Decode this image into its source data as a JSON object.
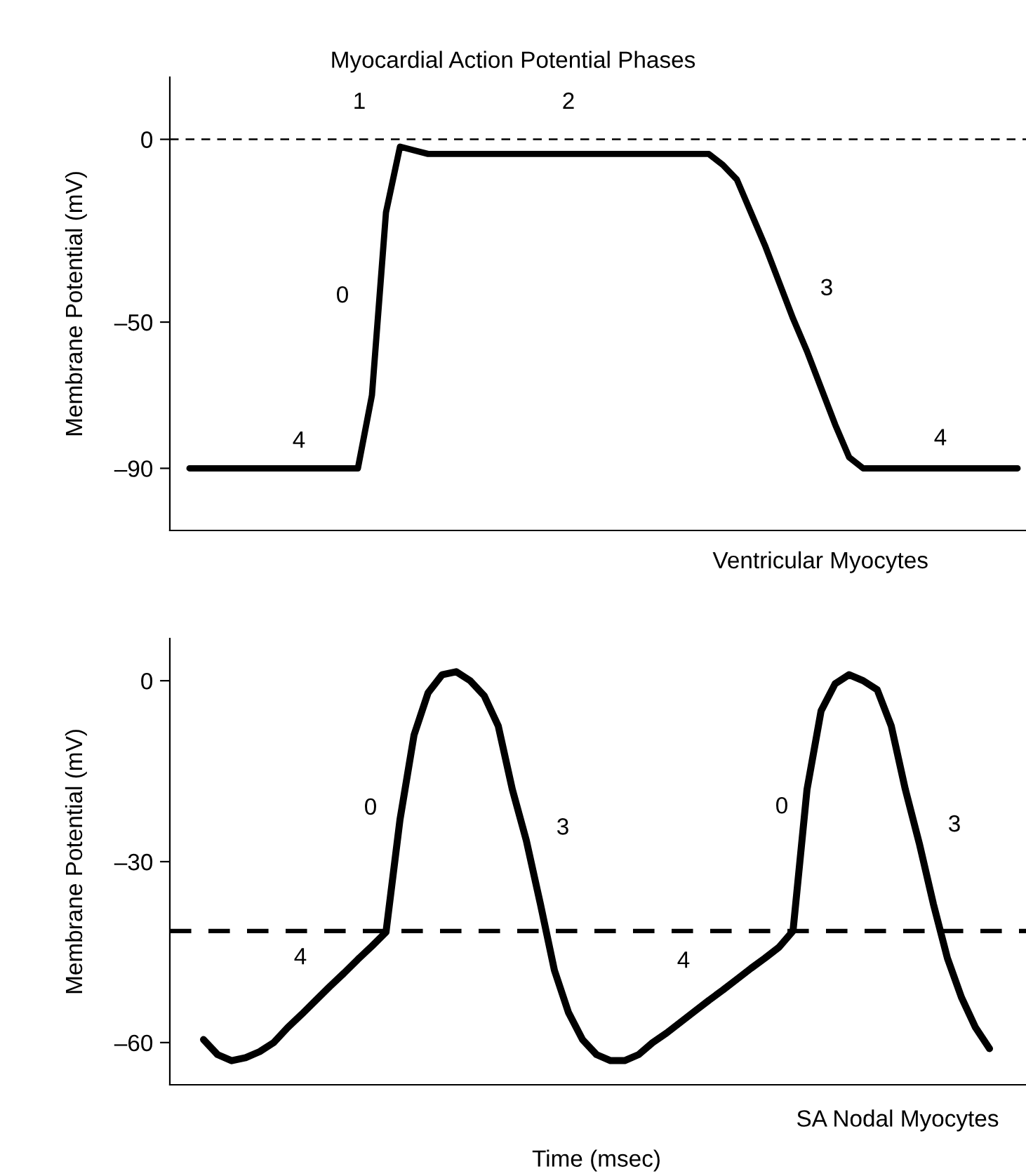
{
  "chart_data": [
    {
      "type": "line",
      "title": "Myocardial Action Potential Phases",
      "ylabel": "Membrane Potential (mV)",
      "categories": [
        null,
        null,
        null,
        null,
        null,
        null,
        null,
        null,
        null,
        null,
        null,
        null,
        null,
        null,
        null,
        null,
        null,
        null,
        null,
        null,
        null,
        null,
        null,
        null,
        null,
        null,
        null,
        null,
        null,
        null,
        null,
        null,
        null,
        null,
        null,
        null,
        null,
        null,
        null,
        null,
        null,
        null,
        null,
        null,
        null,
        null,
        null,
        null,
        null,
        null,
        null,
        null,
        null,
        null,
        null,
        null,
        null,
        null,
        null,
        null
      ],
      "series": [
        {
          "color": "#000000",
          "values": [
            -90,
            -90,
            -90,
            -90,
            -90,
            -90,
            -90,
            -90,
            -90,
            -90,
            -90,
            -90,
            -90,
            -70,
            -20,
            -2,
            -3,
            -4,
            -4,
            -4,
            -4,
            -4,
            -4,
            -4,
            -4,
            -4,
            -4,
            -4,
            -4,
            -4,
            -4,
            -4,
            -4,
            -4,
            -4,
            -4,
            -4,
            -4,
            -7,
            -11,
            -20,
            -29,
            -39,
            -49,
            -58,
            -68,
            -78,
            -87,
            -90,
            -90,
            -90,
            -90,
            -90,
            -90,
            -90,
            -90,
            -90,
            -90,
            -90,
            -90
          ]
        }
      ],
      "ylim": [
        -107,
        17
      ],
      "yticks": [
        0,
        {
          "value": -50,
          "label": "–50"
        },
        {
          "value": -90,
          "label": "–90"
        }
      ],
      "ref_lines": [
        {
          "axis": "y",
          "value": 0,
          "color": "#000000",
          "line_style": "dashed"
        }
      ],
      "annotations": [
        "4",
        "0",
        "1",
        "2",
        "3",
        "4",
        "Ventricular Myocytes"
      ],
      "tick_labels": "y",
      "grid": false,
      "legend": false,
      "marker": "none",
      "line_style": "solid"
    },
    {
      "type": "line",
      "xlabel": "Time (msec)",
      "ylabel": "Membrane Potential (mV)",
      "categories": [
        null,
        null,
        null,
        null,
        null,
        null,
        null,
        null,
        null,
        null,
        null,
        null,
        null,
        null,
        null,
        null,
        null,
        null,
        null,
        null,
        null,
        null,
        null,
        null,
        null,
        null,
        null,
        null,
        null,
        null,
        null,
        null,
        null,
        null,
        null,
        null,
        null,
        null,
        null,
        null,
        null,
        null,
        null,
        null,
        null,
        null,
        null,
        null,
        null,
        null,
        null,
        null,
        null,
        null,
        null,
        null,
        null
      ],
      "series": [
        {
          "color": "#000000",
          "values": [
            -59.5,
            -62,
            -63,
            -62.5,
            -61.5,
            -60,
            -57.5,
            -55.3,
            -53,
            -50.7,
            -48.5,
            -46.2,
            -44,
            -41.7,
            -23,
            -9,
            -2,
            1,
            1.5,
            0,
            -2.5,
            -7.5,
            -18,
            -26.5,
            -37,
            -48,
            -55,
            -59.5,
            -62,
            -63,
            -63,
            -62,
            -60,
            -58.4,
            -56.6,
            -54.8,
            -53,
            -51.3,
            -49.5,
            -47.7,
            -46,
            -44.2,
            -41.5,
            -18,
            -5,
            -0.5,
            1,
            0,
            -1.5,
            -7.5,
            -18,
            -27,
            -37,
            -46,
            -52.5,
            -57.5,
            -61
          ]
        }
      ],
      "ylim": [
        -67,
        7
      ],
      "yticks": [
        0,
        {
          "value": -30,
          "label": "–30"
        },
        {
          "value": -60,
          "label": "–60"
        }
      ],
      "ref_lines": [
        {
          "axis": "y",
          "value": -41.5,
          "color": "#000000",
          "line_style": "dashed"
        }
      ],
      "annotations": [
        "0",
        "3",
        "4",
        "4",
        "0",
        "3",
        "SA Nodal Myocytes"
      ],
      "tick_labels": "y",
      "grid": false,
      "legend": false,
      "marker": "none",
      "line_style": "solid"
    }
  ]
}
